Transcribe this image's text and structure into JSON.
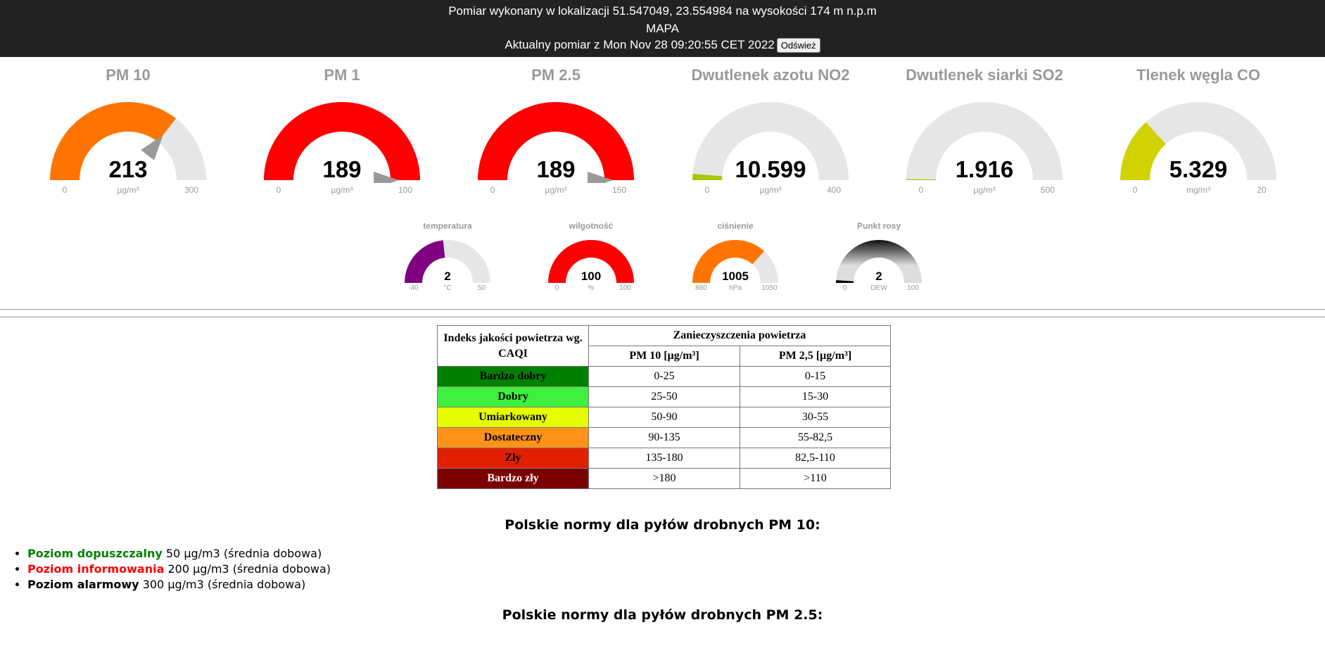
{
  "header": {
    "location_line": "Pomiar wykonany w lokalizacji 51.547049, 23.554984 na wysokości 174 m n.p.m",
    "map_link": "MAPA",
    "measurement_line": "Aktualny pomiar z Mon Nov 28 09:20:55 CET 2022",
    "refresh_label": "Odśwież"
  },
  "gauges_main": [
    {
      "title": "PM 10",
      "value": "213",
      "unit": "µg/m³",
      "min": "0",
      "max": "300",
      "fraction": 0.71,
      "color": "#ff7400",
      "arrow": true
    },
    {
      "title": "PM 1",
      "value": "189",
      "unit": "µg/m³",
      "min": "0",
      "max": "100",
      "fraction": 1.0,
      "color": "#ff0000",
      "arrow": true
    },
    {
      "title": "PM 2.5",
      "value": "189",
      "unit": "µg/m³",
      "min": "0",
      "max": "150",
      "fraction": 1.0,
      "color": "#ff0000",
      "arrow": true
    },
    {
      "title": "Dwutlenek azotu NO2",
      "value": "10.599",
      "unit": "µg/m³",
      "min": "0",
      "max": "400",
      "fraction": 0.026,
      "color": "#a6c800",
      "arrow": false
    },
    {
      "title": "Dwutlenek siarki SO2",
      "value": "1.916",
      "unit": "µg/m³",
      "min": "0",
      "max": "500",
      "fraction": 0.004,
      "color": "#a6c800",
      "arrow": false
    },
    {
      "title": "Tlenek węgla CO",
      "value": "5.329",
      "unit": "mg/m³",
      "min": "0",
      "max": "20",
      "fraction": 0.266,
      "color": "#d2d200",
      "arrow": false
    }
  ],
  "gauges_small": [
    {
      "title": "temperatura",
      "value": "2",
      "unit": "°C",
      "min": "-40",
      "max": "50",
      "fraction": 0.467,
      "color": "#800080"
    },
    {
      "title": "wilgotność",
      "value": "100",
      "unit": "%",
      "min": "0",
      "max": "100",
      "fraction": 1.0,
      "color": "#ff0000"
    },
    {
      "title": "ciśnienie",
      "value": "1005",
      "unit": "hPa",
      "min": "880",
      "max": "1050",
      "fraction": 0.735,
      "color": "#ff7400"
    },
    {
      "title": "Punkt rosy",
      "value": "2",
      "unit": "DEW",
      "min": "0",
      "max": "100",
      "fraction": 0.02,
      "color": "#000000"
    }
  ],
  "caqi_table": {
    "header_index": "Indeks jakości powietrza wg. CAQI",
    "header_pollution": "Zanieczyszczenia powietrza",
    "col_pm10": "PM 10 [µg/m³]",
    "col_pm25": "PM 2,5 [µg/m³]",
    "rows": [
      {
        "category": "Bardzo dobry",
        "pm10": "0-25",
        "pm25": "0-15",
        "bg": "#008000",
        "fg": "#000000"
      },
      {
        "category": "Dobry",
        "pm10": "25-50",
        "pm25": "15-30",
        "bg": "#3ff03f",
        "fg": "#000000"
      },
      {
        "category": "Umiarkowany",
        "pm10": "50-90",
        "pm25": "30-55",
        "bg": "#e5ff00",
        "fg": "#000000"
      },
      {
        "category": "Dostateczny",
        "pm10": "90-135",
        "pm25": "55-82,5",
        "bg": "#ff9218",
        "fg": "#000000"
      },
      {
        "category": "Zły",
        "pm10": "135-180",
        "pm25": "82,5-110",
        "bg": "#e02000",
        "fg": "#000000"
      },
      {
        "category": "Bardzo zły",
        "pm10": ">180",
        "pm25": ">110",
        "bg": "#7c0000",
        "fg": "#ffffff"
      }
    ]
  },
  "norms_pm10": {
    "heading": "Polskie normy dla pyłów drobnych PM 10:",
    "items": [
      {
        "label": "Poziom dopuszczalny",
        "text": "50 µg/m3 (średnia dobowa)",
        "color": "#008000"
      },
      {
        "label": "Poziom informowania",
        "text": "200 µg/m3 (średnia dobowa)",
        "color": "#ff0000"
      },
      {
        "label": "Poziom alarmowy",
        "text": "300 µg/m3 (średnia dobowa)",
        "color": "#000000"
      }
    ]
  },
  "norms_pm25": {
    "heading": "Polskie normy dla pyłów drobnych PM 2.5:"
  }
}
